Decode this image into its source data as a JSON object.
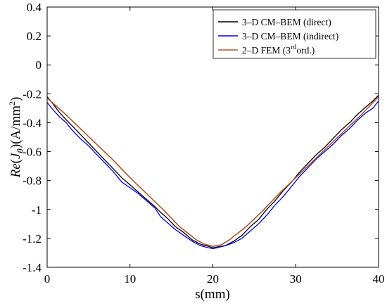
{
  "chart_data": {
    "type": "line",
    "xlabel": "s(mm)",
    "ylabel": "Re(J_θ)(A/mm²)",
    "ylabel_parts": {
      "re": "Re",
      "open": "(",
      "j": "J",
      "sub": "θ",
      "close": ")(A/mm",
      "sup": "2",
      "end": ")"
    },
    "xlim": [
      0,
      40
    ],
    "ylim": [
      -1.4,
      0.4
    ],
    "xticks": [
      "0",
      "10",
      "20",
      "30",
      "40"
    ],
    "yticks": [
      "-1.4",
      "-1.2",
      "-1",
      "-0.8",
      "-0.6",
      "-0.4",
      "-0.2",
      "0",
      "0.2",
      "0.4"
    ],
    "grid": false,
    "legend_position": "top-right",
    "series": [
      {
        "name": "3–D CM–BEM (direct)",
        "legend_parts": [
          "3–D CM–BEM (direct)"
        ],
        "color": "#000000",
        "x": [
          0,
          0.7,
          1.5,
          2.3,
          3.0,
          4.0,
          5.0,
          6.0,
          7.0,
          8.0,
          9.0,
          10.0,
          11.0,
          12.0,
          13.0,
          13.7,
          14.5,
          15.5,
          16.5,
          17.5,
          18.5,
          19.5,
          20.0,
          20.5,
          21.5,
          22.5,
          23.5,
          24.5,
          25.5,
          26.5,
          27.5,
          28.5,
          29.5,
          30.5,
          31.5,
          32.5,
          33.5,
          34.5,
          35.5,
          36.5,
          37.5,
          38.5,
          39.3,
          40
        ],
        "y": [
          -0.22,
          -0.27,
          -0.33,
          -0.38,
          -0.42,
          -0.48,
          -0.54,
          -0.6,
          -0.66,
          -0.72,
          -0.78,
          -0.83,
          -0.88,
          -0.93,
          -0.98,
          -1.02,
          -1.06,
          -1.12,
          -1.16,
          -1.21,
          -1.24,
          -1.255,
          -1.265,
          -1.26,
          -1.25,
          -1.22,
          -1.18,
          -1.12,
          -1.07,
          -1.0,
          -0.94,
          -0.87,
          -0.81,
          -0.74,
          -0.68,
          -0.62,
          -0.57,
          -0.51,
          -0.45,
          -0.4,
          -0.34,
          -0.29,
          -0.25,
          -0.21
        ]
      },
      {
        "name": "3–D CM–BEM (indirect)",
        "legend_parts": [
          "3–D CM–BEM (indirect)"
        ],
        "color": "#0000ee",
        "x": [
          0,
          0.7,
          1.5,
          2.3,
          3.0,
          4.0,
          5.0,
          6.0,
          7.0,
          8.0,
          9.0,
          10.0,
          11.0,
          12.0,
          13.0,
          13.7,
          14.5,
          15.5,
          16.5,
          17.5,
          18.5,
          19.5,
          20.0,
          20.5,
          21.5,
          22.5,
          23.5,
          24.5,
          25.5,
          26.5,
          27.5,
          28.5,
          29.5,
          30.5,
          31.5,
          32.5,
          33.5,
          34.5,
          35.5,
          36.5,
          37.5,
          38.5,
          39.3,
          40
        ],
        "y": [
          -0.26,
          -0.31,
          -0.36,
          -0.4,
          -0.45,
          -0.51,
          -0.56,
          -0.62,
          -0.68,
          -0.74,
          -0.81,
          -0.85,
          -0.89,
          -0.94,
          -0.99,
          -1.05,
          -1.09,
          -1.14,
          -1.18,
          -1.22,
          -1.25,
          -1.265,
          -1.27,
          -1.265,
          -1.25,
          -1.23,
          -1.2,
          -1.15,
          -1.1,
          -1.04,
          -0.97,
          -0.91,
          -0.84,
          -0.77,
          -0.71,
          -0.65,
          -0.6,
          -0.55,
          -0.49,
          -0.44,
          -0.38,
          -0.33,
          -0.3,
          -0.25
        ]
      },
      {
        "name": "2–D FEM (3rd ord.)",
        "legend_parts": [
          "2–D FEM (3",
          "rd",
          "ord.)"
        ],
        "color": "#b0562a",
        "x": [
          0,
          2,
          4,
          6,
          8,
          10,
          12,
          14,
          16,
          18,
          19,
          20,
          21,
          22,
          24,
          26,
          28,
          30,
          32,
          34,
          36,
          38,
          40
        ],
        "y": [
          -0.23,
          -0.33,
          -0.44,
          -0.55,
          -0.66,
          -0.78,
          -0.89,
          -1.0,
          -1.12,
          -1.21,
          -1.24,
          -1.255,
          -1.245,
          -1.21,
          -1.12,
          -1.01,
          -0.89,
          -0.78,
          -0.67,
          -0.56,
          -0.45,
          -0.34,
          -0.22
        ]
      }
    ]
  }
}
